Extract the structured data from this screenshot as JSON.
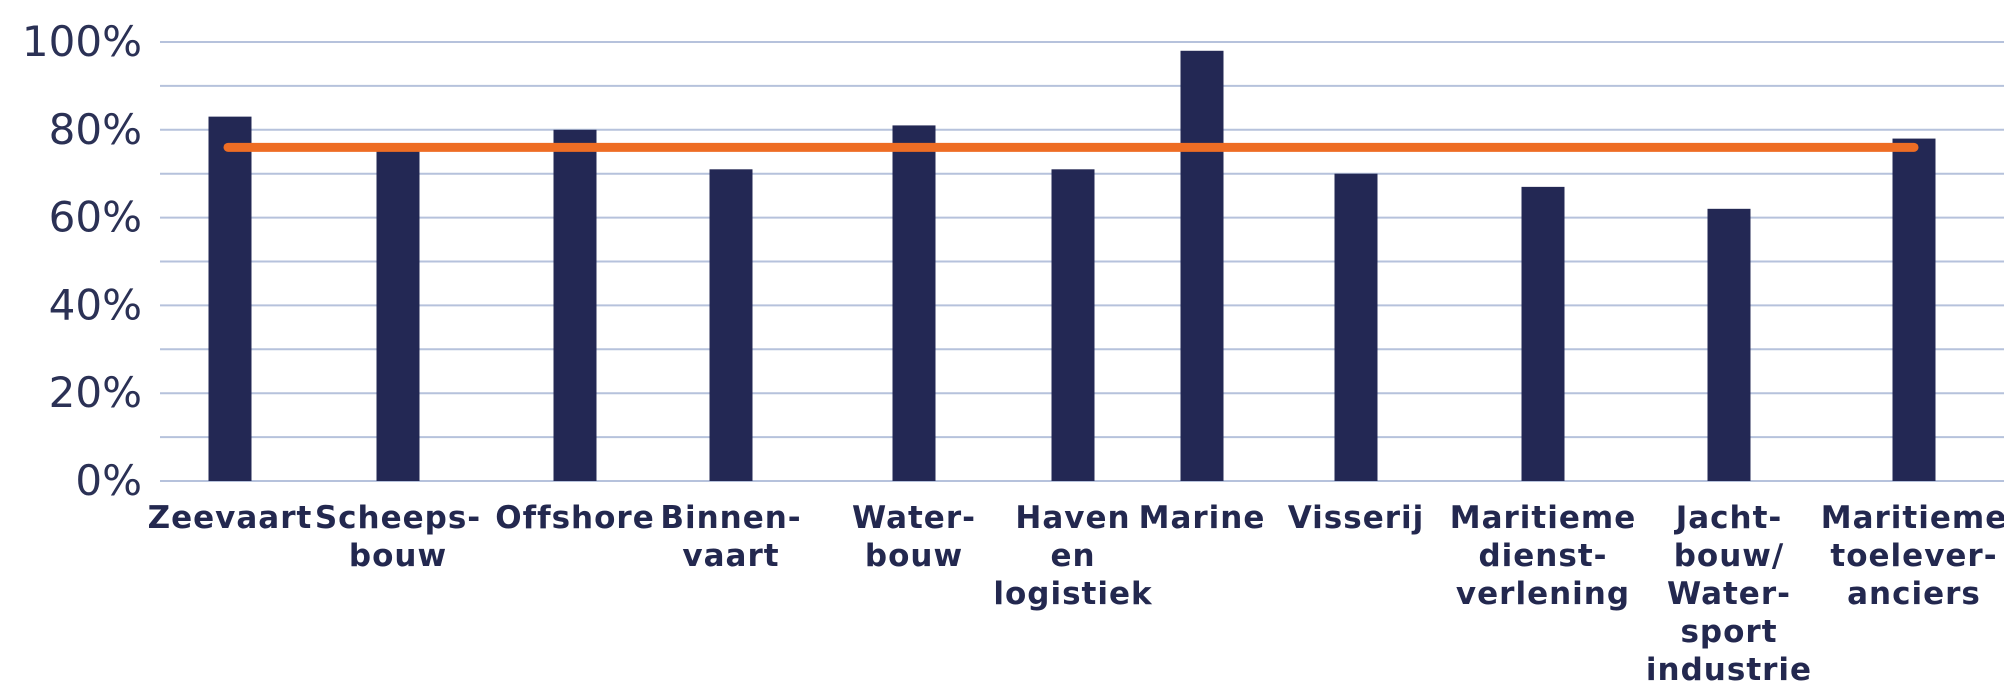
{
  "chart_data": {
    "type": "bar",
    "categories": [
      [
        "Zeevaart"
      ],
      [
        "Scheeps-",
        "bouw"
      ],
      [
        "Offshore"
      ],
      [
        "Binnen-",
        "vaart"
      ],
      [
        "Water-",
        "bouw"
      ],
      [
        "Haven",
        "en",
        "logistiek"
      ],
      [
        "Marine"
      ],
      [
        "Visserij"
      ],
      [
        "Maritieme",
        "dienst-",
        "verlening"
      ],
      [
        "Jacht-",
        "bouw/",
        "Water-",
        "sport",
        "industrie"
      ],
      [
        "Maritieme",
        "toelever-",
        "anciers"
      ]
    ],
    "series": [
      {
        "values": [
          83,
          76,
          80,
          71,
          81,
          71,
          98,
          70,
          67,
          62,
          78
        ]
      }
    ],
    "reference_line": {
      "value": 76
    },
    "yticks": [
      "0%",
      "20%",
      "40%",
      "60%",
      "80%",
      "100%"
    ],
    "ylim": [
      0,
      100
    ],
    "grid": true,
    "legend": "none",
    "colors": {
      "bar": "#232854",
      "reference_line": "#ee6d24",
      "grid": "#b6c2dc",
      "text": "#23284f"
    }
  }
}
